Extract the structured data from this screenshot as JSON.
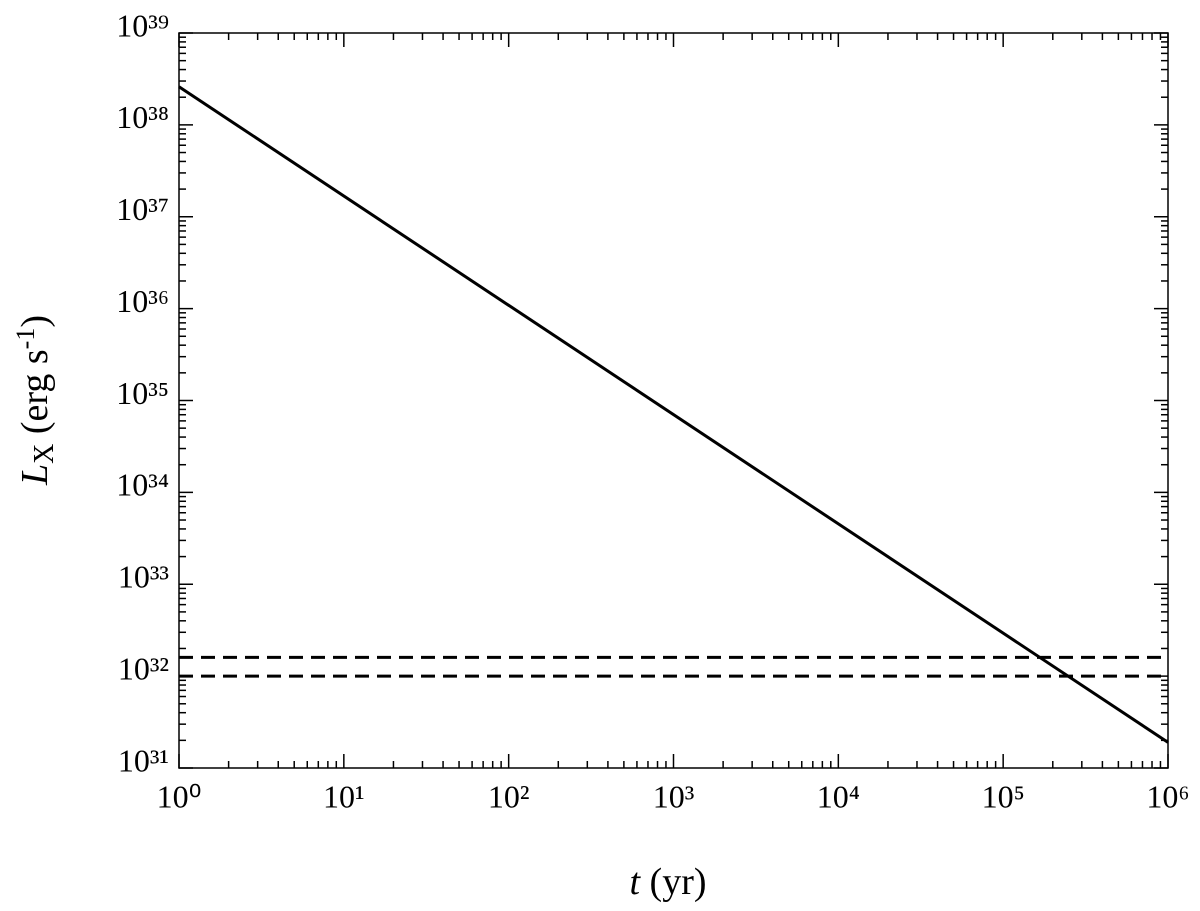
{
  "chart_data": {
    "type": "line",
    "xlabel": [
      "t",
      " (yr)"
    ],
    "ylabel": [
      "L",
      "X",
      " (erg s",
      "-1",
      ")"
    ],
    "log_x": true,
    "log_y": true,
    "xlim": [
      1,
      1000000
    ],
    "ylim": [
      1e+31,
      1e+39
    ],
    "xticks": [
      {
        "value": 1,
        "label": "10⁰"
      },
      {
        "value": 10,
        "label": "10¹"
      },
      {
        "value": 100,
        "label": "10²"
      },
      {
        "value": 1000,
        "label": "10³"
      },
      {
        "value": 10000,
        "label": "10⁴"
      },
      {
        "value": 100000,
        "label": "10⁵"
      },
      {
        "value": 1000000,
        "label": "10⁶"
      }
    ],
    "yticks": [
      {
        "value": 1e+31,
        "label": "10³¹"
      },
      {
        "value": 1e+32,
        "label": "10³²"
      },
      {
        "value": 1e+33,
        "label": "10³³"
      },
      {
        "value": 1e+34,
        "label": "10³⁴"
      },
      {
        "value": 1e+35,
        "label": "10³⁵"
      },
      {
        "value": 1e+36,
        "label": "10³⁶"
      },
      {
        "value": 1e+37,
        "label": "10³⁷"
      },
      {
        "value": 1e+38,
        "label": "10³⁸"
      },
      {
        "value": 1e+39,
        "label": "10³⁹"
      }
    ],
    "series": [
      {
        "color": "#000000",
        "style": "solid",
        "x": [
          1,
          1000000
        ],
        "values": [
          2.6e+38,
          1.9e+31
        ]
      },
      {
        "color": "#000000",
        "style": "dashed",
        "x": [
          1,
          1000000
        ],
        "values": [
          1.6e+32,
          1.6e+32
        ]
      },
      {
        "color": "#000000",
        "style": "dashed",
        "x": [
          1,
          1000000
        ],
        "values": [
          1e+32,
          1e+32
        ]
      }
    ]
  }
}
